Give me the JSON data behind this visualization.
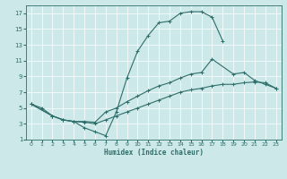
{
  "xlabel": "Humidex (Indice chaleur)",
  "bg_color": "#cce8e8",
  "grid_color": "#ffffff",
  "line_color": "#2e6e6a",
  "xlim": [
    -0.5,
    23.5
  ],
  "ylim": [
    1,
    18
  ],
  "xticks": [
    0,
    1,
    2,
    3,
    4,
    5,
    6,
    7,
    8,
    9,
    10,
    11,
    12,
    13,
    14,
    15,
    16,
    17,
    18,
    19,
    20,
    21,
    22,
    23
  ],
  "yticks": [
    1,
    3,
    5,
    7,
    9,
    11,
    13,
    15,
    17
  ],
  "line1_x": [
    0,
    1,
    2,
    3,
    4,
    5,
    6,
    7,
    8,
    9,
    10,
    11,
    12,
    13,
    14,
    15,
    16,
    17,
    18
  ],
  "line1_y": [
    5.5,
    5.0,
    4.0,
    3.5,
    3.3,
    2.5,
    2.0,
    1.5,
    4.5,
    8.8,
    12.2,
    14.2,
    15.8,
    16.0,
    17.0,
    17.2,
    17.2,
    16.5,
    13.5
  ],
  "line2_x": [
    0,
    2,
    3,
    4,
    5,
    6,
    7,
    8,
    9,
    10,
    11,
    12,
    13,
    14,
    15,
    16,
    17,
    19,
    20,
    21,
    22,
    23
  ],
  "line2_y": [
    5.5,
    4.0,
    3.5,
    3.3,
    3.3,
    3.2,
    4.5,
    5.0,
    5.8,
    6.5,
    7.2,
    7.8,
    8.2,
    8.8,
    9.3,
    9.5,
    11.2,
    9.3,
    9.5,
    8.5,
    8.0,
    7.5
  ],
  "line3_x": [
    0,
    2,
    3,
    4,
    5,
    6,
    7,
    8,
    9,
    10,
    11,
    12,
    13,
    14,
    15,
    16,
    17,
    18,
    19,
    20,
    21,
    22,
    23
  ],
  "line3_y": [
    5.5,
    4.0,
    3.5,
    3.3,
    3.2,
    3.0,
    3.5,
    4.0,
    4.5,
    5.0,
    5.5,
    6.0,
    6.5,
    7.0,
    7.3,
    7.5,
    7.8,
    8.0,
    8.0,
    8.2,
    8.3,
    8.2,
    7.5
  ]
}
